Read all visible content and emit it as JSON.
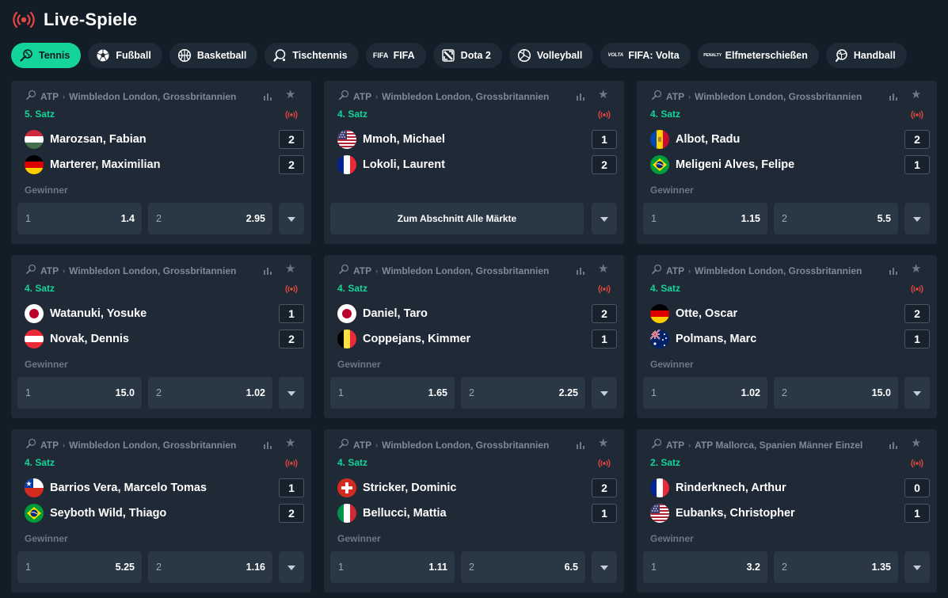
{
  "header": {
    "title": "Live-Spiele",
    "icon": "live-broadcast-icon"
  },
  "tabs": [
    {
      "label": "Tennis",
      "icon": "tennis-icon",
      "active": true
    },
    {
      "label": "Fußball",
      "icon": "soccer-ball-icon"
    },
    {
      "label": "Basketball",
      "icon": "basketball-icon"
    },
    {
      "label": "Tischtennis",
      "icon": "table-tennis-icon"
    },
    {
      "label": "FIFA",
      "icon": "fifa-icon",
      "icon_text": "FIFA"
    },
    {
      "label": "Dota 2",
      "icon": "dota-icon"
    },
    {
      "label": "Volleyball",
      "icon": "volleyball-icon"
    },
    {
      "label": "FIFA: Volta",
      "icon": "fifa-volta-icon",
      "icon_text": "VOLTA"
    },
    {
      "label": "Elfmeterschießen",
      "icon": "penalty-fifa-icon",
      "icon_text": "PENALTY"
    },
    {
      "label": "Handball",
      "icon": "handball-icon"
    }
  ],
  "colors": {
    "accent": "#15d49a",
    "live": "#e8473f",
    "card": "#1f2a36",
    "background": "#131d27"
  },
  "matches": [
    {
      "league": "ATP",
      "tournament": "Wimbledon London, Grossbritannien",
      "period": "5. Satz",
      "players": [
        {
          "name": "Marozsan, Fabian",
          "flag": "hu",
          "score": "2"
        },
        {
          "name": "Marterer, Maximilian",
          "flag": "de",
          "score": "2"
        }
      ],
      "market": "Gewinner",
      "odds": [
        {
          "sel": "1",
          "price": "1.4"
        },
        {
          "sel": "2",
          "price": "2.95"
        }
      ]
    },
    {
      "league": "ATP",
      "tournament": "Wimbledon London, Grossbritannien",
      "period": "4. Satz",
      "players": [
        {
          "name": "Mmoh, Michael",
          "flag": "us",
          "score": "1"
        },
        {
          "name": "Lokoli, Laurent",
          "flag": "fr",
          "score": "2"
        }
      ],
      "all_markets": "Zum Abschnitt Alle Märkte"
    },
    {
      "league": "ATP",
      "tournament": "Wimbledon London, Grossbritannien",
      "period": "4. Satz",
      "players": [
        {
          "name": "Albot, Radu",
          "flag": "md",
          "score": "2"
        },
        {
          "name": "Meligeni Alves, Felipe",
          "flag": "br",
          "score": "1"
        }
      ],
      "market": "Gewinner",
      "odds": [
        {
          "sel": "1",
          "price": "1.15"
        },
        {
          "sel": "2",
          "price": "5.5"
        }
      ]
    },
    {
      "league": "ATP",
      "tournament": "Wimbledon London, Grossbritannien",
      "period": "4. Satz",
      "players": [
        {
          "name": "Watanuki, Yosuke",
          "flag": "jp",
          "score": "1"
        },
        {
          "name": "Novak, Dennis",
          "flag": "at",
          "score": "2"
        }
      ],
      "market": "Gewinner",
      "odds": [
        {
          "sel": "1",
          "price": "15.0"
        },
        {
          "sel": "2",
          "price": "1.02"
        }
      ]
    },
    {
      "league": "ATP",
      "tournament": "Wimbledon London, Grossbritannien",
      "period": "4. Satz",
      "players": [
        {
          "name": "Daniel, Taro",
          "flag": "jp",
          "score": "2"
        },
        {
          "name": "Coppejans, Kimmer",
          "flag": "be",
          "score": "1"
        }
      ],
      "market": "Gewinner",
      "odds": [
        {
          "sel": "1",
          "price": "1.65"
        },
        {
          "sel": "2",
          "price": "2.25"
        }
      ]
    },
    {
      "league": "ATP",
      "tournament": "Wimbledon London, Grossbritannien",
      "period": "4. Satz",
      "players": [
        {
          "name": "Otte, Oscar",
          "flag": "de",
          "score": "2"
        },
        {
          "name": "Polmans, Marc",
          "flag": "au",
          "score": "1"
        }
      ],
      "market": "Gewinner",
      "odds": [
        {
          "sel": "1",
          "price": "1.02"
        },
        {
          "sel": "2",
          "price": "15.0"
        }
      ]
    },
    {
      "league": "ATP",
      "tournament": "Wimbledon London, Grossbritannien",
      "period": "4. Satz",
      "players": [
        {
          "name": "Barrios Vera, Marcelo Tomas",
          "flag": "cl",
          "score": "1"
        },
        {
          "name": "Seyboth Wild, Thiago",
          "flag": "br",
          "score": "2"
        }
      ],
      "market": "Gewinner",
      "odds": [
        {
          "sel": "1",
          "price": "5.25"
        },
        {
          "sel": "2",
          "price": "1.16"
        }
      ]
    },
    {
      "league": "ATP",
      "tournament": "Wimbledon London, Grossbritannien",
      "period": "4. Satz",
      "players": [
        {
          "name": "Stricker, Dominic",
          "flag": "ch",
          "score": "2"
        },
        {
          "name": "Bellucci, Mattia",
          "flag": "it",
          "score": "1"
        }
      ],
      "market": "Gewinner",
      "odds": [
        {
          "sel": "1",
          "price": "1.11"
        },
        {
          "sel": "2",
          "price": "6.5"
        }
      ]
    },
    {
      "league": "ATP",
      "tournament": "ATP Mallorca, Spanien Männer Einzel",
      "period": "2. Satz",
      "players": [
        {
          "name": "Rinderknech, Arthur",
          "flag": "fr",
          "score": "0"
        },
        {
          "name": "Eubanks, Christopher",
          "flag": "us",
          "score": "1"
        }
      ],
      "market": "Gewinner",
      "odds": [
        {
          "sel": "1",
          "price": "3.2"
        },
        {
          "sel": "2",
          "price": "1.35"
        }
      ]
    }
  ]
}
